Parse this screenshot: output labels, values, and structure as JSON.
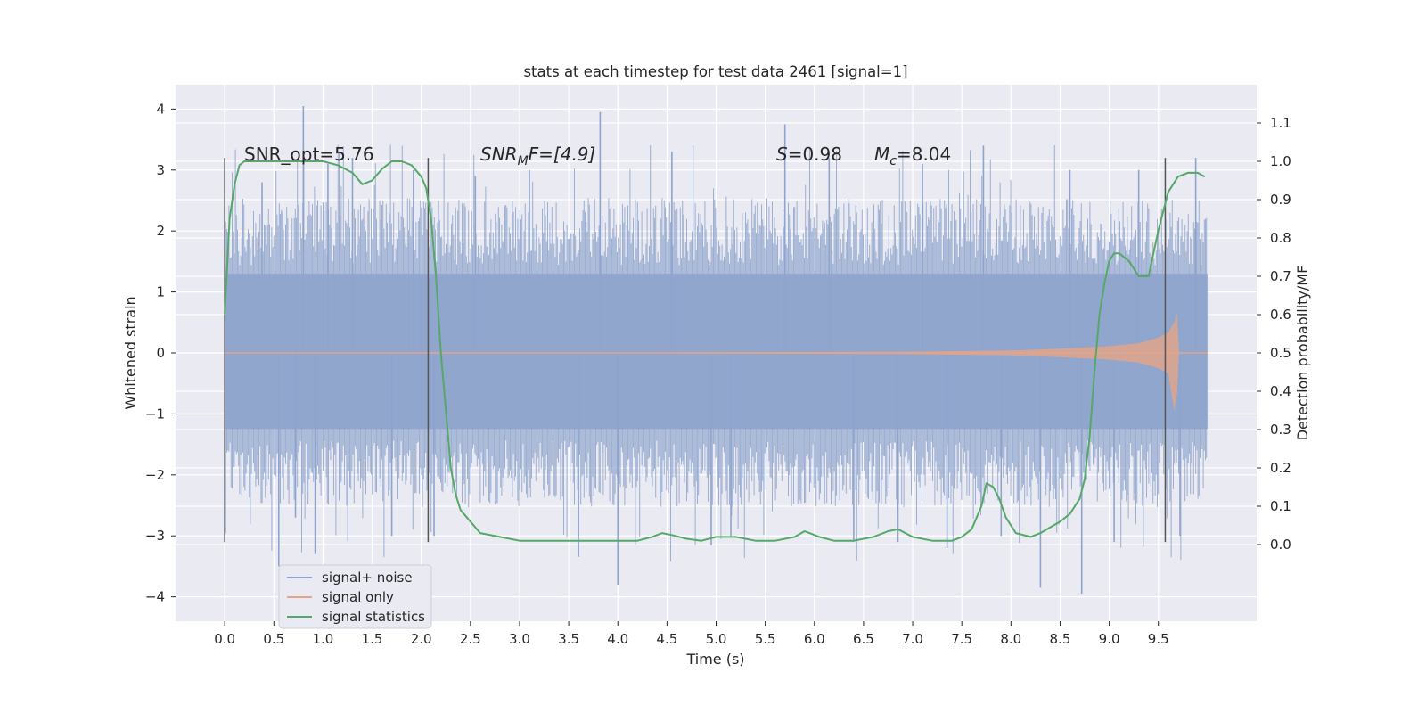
{
  "chart_data": {
    "type": "line",
    "title": "stats at each timestep for test data 2461 [signal=1]",
    "xlabel": "Time (s)",
    "ylabel_left": "Whitened strain",
    "ylabel_right": "Detection probability/MF",
    "xlim": [
      -0.5,
      10.5
    ],
    "ylim_left": [
      -4.4,
      4.4
    ],
    "ylim_right": [
      -0.2,
      1.2
    ],
    "x_ticks": [
      "0.0",
      "0.5",
      "1.0",
      "1.5",
      "2.0",
      "2.5",
      "3.0",
      "3.5",
      "4.0",
      "4.5",
      "5.0",
      "5.5",
      "6.0",
      "6.5",
      "7.0",
      "7.5",
      "8.0",
      "8.5",
      "9.0",
      "9.5"
    ],
    "y_left_ticks": [
      "4",
      "3",
      "2",
      "1",
      "0",
      "−1",
      "−2",
      "−3",
      "−4"
    ],
    "y_right_ticks": [
      "1.1",
      "1.0",
      "0.9",
      "0.8",
      "0.7",
      "0.6",
      "0.5",
      "0.4",
      "0.3",
      "0.2",
      "0.1",
      "0.0"
    ],
    "grid": true,
    "legend_location": "lower-left",
    "annotations": {
      "snr_opt": "SNR_opt=5.76",
      "snr_mf_a": "SNR",
      "snr_mf_sub": "M",
      "snr_mf_b": "F=[4.9]",
      "s_a": "S",
      "s_b": "=0.98",
      "mc_a": "M",
      "mc_sub": "c",
      "mc_b": "=8.04"
    },
    "vertical_markers": [
      0.0,
      2.07,
      9.57
    ],
    "series": [
      {
        "name": "signal+ noise",
        "color": "#8fa4cc",
        "x_range": [
          0.0,
          10.0
        ],
        "core_band": [
          -1.25,
          1.3
        ],
        "main_band": [
          -2.0,
          2.0
        ],
        "max_abs": 4.05,
        "spikes": [
          [
            0.38,
            2.8
          ],
          [
            0.55,
            -3.5
          ],
          [
            0.72,
            -2.7
          ],
          [
            0.8,
            4.05
          ],
          [
            0.92,
            -3.3
          ],
          [
            1.05,
            3.1
          ],
          [
            1.3,
            3.2
          ],
          [
            1.7,
            -3.0
          ],
          [
            1.92,
            3.0
          ],
          [
            2.13,
            -3.0
          ],
          [
            2.55,
            2.9
          ],
          [
            3.1,
            3.0
          ],
          [
            3.6,
            -3.35
          ],
          [
            3.82,
            3.95
          ],
          [
            4.0,
            -3.8
          ],
          [
            4.55,
            3.3
          ],
          [
            4.95,
            -3.15
          ],
          [
            5.15,
            -3.0
          ],
          [
            5.7,
            3.75
          ],
          [
            6.15,
            3.2
          ],
          [
            6.4,
            -3.1
          ],
          [
            6.85,
            -3.1
          ],
          [
            7.1,
            3.1
          ],
          [
            7.35,
            -3.2
          ],
          [
            7.72,
            3.4
          ],
          [
            7.9,
            -3.0
          ],
          [
            8.3,
            -3.85
          ],
          [
            8.6,
            3.0
          ],
          [
            8.72,
            -3.95
          ],
          [
            9.05,
            -3.1
          ],
          [
            9.3,
            3.0
          ],
          [
            9.72,
            -3.0
          ],
          [
            9.88,
            3.2
          ]
        ]
      },
      {
        "name": "signal only",
        "color": "#e0a58b",
        "x": [
          0.0,
          2.0,
          4.0,
          6.0,
          7.0,
          8.0,
          8.5,
          9.0,
          9.3,
          9.5,
          9.6,
          9.66,
          9.69,
          9.71,
          10.0
        ],
        "amplitude": [
          0.002,
          0.004,
          0.008,
          0.014,
          0.02,
          0.04,
          0.07,
          0.11,
          0.16,
          0.25,
          0.33,
          0.5,
          0.65,
          0.0,
          0.0
        ],
        "min_y": -0.95
      },
      {
        "name": "signal statistics",
        "color": "#55a868",
        "axis": "right",
        "x": [
          0.0,
          0.05,
          0.1,
          0.15,
          0.2,
          0.3,
          0.5,
          0.8,
          1.0,
          1.15,
          1.3,
          1.4,
          1.5,
          1.6,
          1.7,
          1.8,
          1.9,
          2.0,
          2.05,
          2.1,
          2.15,
          2.2,
          2.25,
          2.3,
          2.35,
          2.4,
          2.5,
          2.6,
          2.8,
          3.0,
          3.3,
          3.6,
          3.9,
          4.0,
          4.2,
          4.35,
          4.45,
          4.55,
          4.7,
          4.85,
          5.0,
          5.2,
          5.4,
          5.6,
          5.8,
          5.9,
          5.95,
          6.05,
          6.2,
          6.4,
          6.6,
          6.75,
          6.85,
          7.0,
          7.2,
          7.4,
          7.5,
          7.6,
          7.7,
          7.75,
          7.82,
          7.88,
          7.95,
          8.05,
          8.2,
          8.3,
          8.4,
          8.5,
          8.6,
          8.7,
          8.75,
          8.8,
          8.85,
          8.9,
          8.95,
          9.0,
          9.05,
          9.1,
          9.2,
          9.3,
          9.4,
          9.5,
          9.6,
          9.7,
          9.8,
          9.9,
          9.97
        ],
        "y": [
          0.6,
          0.85,
          0.94,
          0.99,
          1.0,
          1.0,
          1.0,
          1.0,
          1.0,
          0.99,
          0.97,
          0.94,
          0.95,
          0.98,
          1.0,
          1.0,
          0.99,
          0.96,
          0.93,
          0.85,
          0.7,
          0.5,
          0.35,
          0.2,
          0.13,
          0.09,
          0.06,
          0.03,
          0.02,
          0.01,
          0.01,
          0.01,
          0.01,
          0.01,
          0.01,
          0.02,
          0.03,
          0.025,
          0.015,
          0.01,
          0.02,
          0.02,
          0.01,
          0.01,
          0.02,
          0.035,
          0.03,
          0.02,
          0.01,
          0.01,
          0.02,
          0.035,
          0.04,
          0.02,
          0.01,
          0.01,
          0.02,
          0.04,
          0.1,
          0.16,
          0.15,
          0.12,
          0.07,
          0.03,
          0.02,
          0.03,
          0.045,
          0.06,
          0.08,
          0.12,
          0.17,
          0.28,
          0.45,
          0.6,
          0.68,
          0.74,
          0.76,
          0.76,
          0.74,
          0.7,
          0.7,
          0.82,
          0.92,
          0.96,
          0.97,
          0.97,
          0.96
        ]
      }
    ]
  }
}
